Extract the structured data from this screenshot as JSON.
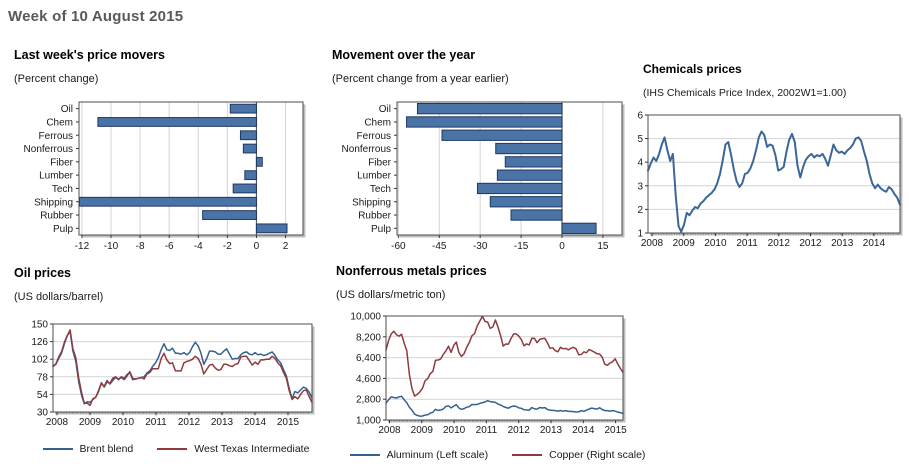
{
  "header": {
    "title": "Week of 10 August 2015"
  },
  "chart_data": [
    {
      "id": "movers",
      "type": "bar",
      "title": "Last week's price movers",
      "subtitle": "(Percent change)",
      "categories": [
        "Oil",
        "Chem",
        "Ferrous",
        "Nonferrous",
        "Fiber",
        "Lumber",
        "Tech",
        "Shipping",
        "Rubber",
        "Pulp"
      ],
      "values": [
        -1.8,
        -10.9,
        -1.1,
        -0.9,
        0.4,
        -0.8,
        -1.6,
        -12.4,
        -3.7,
        2.1
      ],
      "xticks": [
        -12,
        -10,
        -8,
        -6,
        -4,
        -2,
        0,
        2
      ],
      "xlim": [
        -12.2,
        3.2
      ],
      "bar_color": "#4a74a6",
      "bar_border": "#1f3864",
      "grid": true
    },
    {
      "id": "overyear",
      "type": "bar",
      "title": "Movement over the year",
      "subtitle": "(Percent change from a year earlier)",
      "categories": [
        "Oil",
        "Chem",
        "Ferrous",
        "Nonferrous",
        "Fiber",
        "Lumber",
        "Tech",
        "Shipping",
        "Rubber",
        "Pulp"
      ],
      "values": [
        -53,
        -57,
        -44,
        -24.3,
        -20.8,
        -23.7,
        -31,
        -26.3,
        -18.7,
        12.5
      ],
      "xticks": [
        -60,
        -45,
        -30,
        -15,
        0,
        15
      ],
      "xlim": [
        -60.5,
        22
      ],
      "bar_color": "#4a74a6",
      "bar_border": "#1f3864",
      "grid": true
    },
    {
      "id": "chemicals",
      "type": "line",
      "title": "Chemicals prices",
      "subtitle": "(IHS Chemicals Price Index, 2002W1=1.00)",
      "ylim": [
        1,
        6
      ],
      "yticks": [
        {
          "v": 1,
          "label": "1"
        },
        {
          "v": 2,
          "label": "2"
        },
        {
          "v": 3,
          "label": "3"
        },
        {
          "v": 4,
          "label": "4"
        },
        {
          "v": 5,
          "label": "5"
        },
        {
          "v": 6,
          "label": "6"
        }
      ],
      "xlabels": [
        "2008",
        "2009",
        "2010",
        "2011",
        "2012",
        "2012",
        "2013",
        "2014"
      ],
      "series": [
        {
          "name": "IHS Chemicals Price Index",
          "color": "#3a6699",
          "values": [
            3.65,
            3.95,
            4.2,
            4.05,
            4.35,
            4.75,
            5.05,
            4.5,
            4.05,
            4.35,
            2.6,
            1.3,
            1.05,
            1.35,
            1.85,
            1.75,
            1.95,
            2.1,
            2.05,
            2.25,
            2.35,
            2.5,
            2.6,
            2.7,
            2.85,
            3.1,
            3.5,
            4.1,
            4.75,
            4.85,
            4.3,
            3.7,
            3.2,
            2.95,
            3.1,
            3.5,
            3.55,
            3.75,
            4.05,
            4.5,
            5.05,
            5.3,
            5.15,
            4.65,
            4.75,
            4.7,
            4.3,
            3.65,
            3.7,
            3.8,
            4.45,
            4.95,
            5.2,
            4.85,
            3.85,
            3.35,
            3.8,
            4.1,
            4.25,
            4.35,
            4.2,
            4.3,
            4.25,
            4.35,
            4.15,
            3.85,
            4.3,
            4.75,
            4.5,
            4.4,
            4.45,
            4.35,
            4.5,
            4.6,
            4.75,
            5.0,
            5.05,
            4.9,
            4.45,
            4.05,
            3.5,
            3.1,
            2.9,
            3.05,
            2.9,
            2.8,
            2.75,
            2.95,
            2.85,
            2.65,
            2.5,
            2.2
          ]
        }
      ]
    },
    {
      "id": "oil",
      "type": "line",
      "title": "Oil prices",
      "subtitle": "(US dollars/barrel)",
      "ylim": [
        30,
        150
      ],
      "yticks": [
        {
          "v": 30,
          "label": "30"
        },
        {
          "v": 54,
          "label": "54"
        },
        {
          "v": 78,
          "label": "78"
        },
        {
          "v": 102,
          "label": "102"
        },
        {
          "v": 126,
          "label": "126"
        },
        {
          "v": 150,
          "label": "150"
        }
      ],
      "xlabels": [
        "2008",
        "2009",
        "2010",
        "2011",
        "2012",
        "2013",
        "2014",
        "2015"
      ],
      "series": [
        {
          "name": "Brent blend",
          "color": "#35618f",
          "values": [
            92,
            95,
            103,
            110,
            123,
            134,
            140,
            113,
            99,
            72,
            53,
            41,
            44,
            43,
            47,
            50,
            58,
            69,
            65,
            73,
            68,
            73,
            77,
            75,
            77,
            74,
            79,
            85,
            76,
            75,
            76,
            77,
            78,
            83,
            86,
            92,
            97,
            104,
            115,
            123,
            115,
            114,
            117,
            110,
            110,
            109,
            111,
            108,
            111,
            119,
            125,
            120,
            110,
            95,
            103,
            113,
            113,
            112,
            109,
            109,
            113,
            116,
            109,
            102,
            103,
            103,
            108,
            111,
            112,
            109,
            108,
            111,
            108,
            109,
            107,
            108,
            110,
            112,
            107,
            101,
            97,
            88,
            79,
            62,
            48,
            58,
            56,
            60,
            64,
            62,
            57,
            49
          ]
        },
        {
          "name": "West Texas Intermediate",
          "color": "#8e3b3e",
          "values": [
            93,
            95,
            105,
            112,
            125,
            134,
            142,
            116,
            104,
            77,
            57,
            42,
            42,
            39,
            48,
            50,
            59,
            70,
            64,
            71,
            69,
            76,
            78,
            74,
            78,
            76,
            81,
            84,
            74,
            75,
            76,
            77,
            75,
            82,
            84,
            89,
            89,
            89,
            103,
            110,
            101,
            96,
            97,
            86,
            86,
            86,
            97,
            99,
            100,
            102,
            106,
            103,
            95,
            82,
            88,
            94,
            95,
            90,
            87,
            88,
            95,
            95,
            93,
            92,
            95,
            96,
            105,
            106,
            106,
            100,
            94,
            98,
            95,
            101,
            101,
            102,
            102,
            106,
            103,
            97,
            93,
            84,
            76,
            59,
            47,
            51,
            48,
            54,
            59,
            60,
            51,
            43
          ]
        }
      ]
    },
    {
      "id": "nonferrous",
      "type": "line",
      "title": "Nonferrous metals prices",
      "subtitle": "(US dollars/metric ton)",
      "ylim": [
        1000,
        10000
      ],
      "yticks": [
        {
          "v": 1000,
          "label": "1,000"
        },
        {
          "v": 2800,
          "label": "2,800"
        },
        {
          "v": 4600,
          "label": "4,600"
        },
        {
          "v": 6400,
          "label": "6,400"
        },
        {
          "v": 8200,
          "label": "8,200"
        },
        {
          "v": 10000,
          "label": "10,000"
        }
      ],
      "xlabels": [
        "2008",
        "2009",
        "2010",
        "2011",
        "2012",
        "2013",
        "2014",
        "2015"
      ],
      "series": [
        {
          "name": "Aluminum (Left scale)",
          "color": "#35618f",
          "values": [
            2450,
            2750,
            3000,
            2950,
            2900,
            3000,
            3050,
            2750,
            2500,
            2100,
            1850,
            1500,
            1400,
            1330,
            1350,
            1420,
            1450,
            1600,
            1670,
            1930,
            1820,
            1875,
            1950,
            2180,
            2230,
            2050,
            2200,
            2320,
            2040,
            1930,
            1990,
            2110,
            2160,
            2340,
            2330,
            2350,
            2440,
            2510,
            2555,
            2670,
            2590,
            2560,
            2525,
            2380,
            2300,
            2180,
            2080,
            2020,
            2150,
            2210,
            2180,
            2050,
            2000,
            1890,
            1875,
            1845,
            2080,
            1970,
            1940,
            2080,
            2040,
            2070,
            1910,
            1860,
            1830,
            1815,
            1770,
            1820,
            1760,
            1815,
            1745,
            1740,
            1730,
            1695,
            1705,
            1810,
            1750,
            1850,
            1950,
            2030,
            1990,
            1945,
            2055,
            1910,
            1815,
            1815,
            1770,
            1815,
            1760,
            1680,
            1640,
            1550
          ]
        },
        {
          "name": "Copper (Right scale)",
          "color": "#8e3b3e",
          "values": [
            7060,
            7890,
            8440,
            8685,
            8380,
            8260,
            8414,
            7635,
            6990,
            4925,
            3715,
            3070,
            3220,
            3430,
            3750,
            4405,
            4570,
            5015,
            5215,
            6165,
            6195,
            6290,
            6675,
            6980,
            7385,
            6850,
            7460,
            7745,
            6835,
            6500,
            6735,
            7285,
            7710,
            8290,
            8470,
            9145,
            9555,
            9980,
            9530,
            9485,
            8925,
            9045,
            9650,
            9040,
            8300,
            7395,
            7580,
            7565,
            8040,
            8440,
            8455,
            8260,
            7945,
            7420,
            7585,
            7500,
            8070,
            8060,
            7690,
            7965,
            8045,
            8060,
            7660,
            7205,
            7245,
            7000,
            6905,
            7290,
            7160,
            7205,
            7070,
            7215,
            7290,
            7150,
            6650,
            6670,
            6890,
            6820,
            7105,
            7000,
            6870,
            6735,
            6710,
            6445,
            5830,
            5730,
            5940,
            6040,
            6295,
            5835,
            5460,
            5130
          ]
        }
      ]
    }
  ]
}
